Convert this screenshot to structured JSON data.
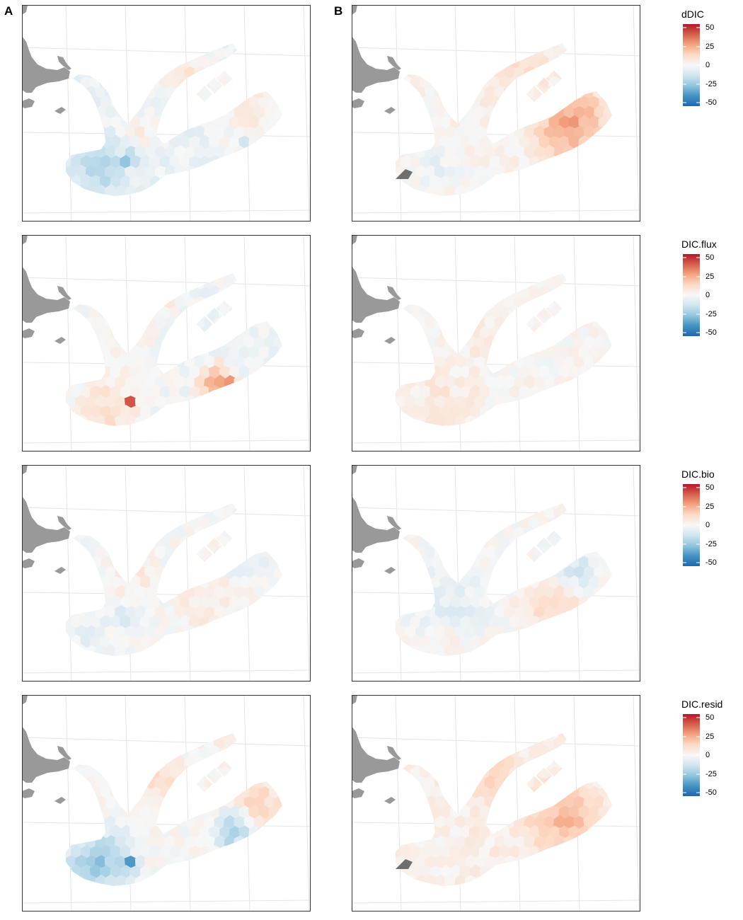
{
  "panel_labels": [
    "A",
    "B"
  ],
  "colors": {
    "land": "#999999",
    "land_dark": "#6e6e6e",
    "grid": "#e4e4e4",
    "frame": "#333333",
    "diverging_scale": [
      "#2166ac",
      "#4393c3",
      "#92c5de",
      "#d1e5f0",
      "#f7f7f7",
      "#fddbc7",
      "#f4a582",
      "#d6604d",
      "#b2182b"
    ]
  },
  "legend_ticks": [
    "50",
    "25",
    "0",
    "-25",
    "-50"
  ],
  "rows": [
    {
      "variable": "dDIC",
      "panels": [
        {
          "label": "A",
          "pattern": "dDIC_A"
        },
        {
          "label": "B",
          "pattern": "dDIC_B"
        }
      ]
    },
    {
      "variable": "DIC.flux",
      "panels": [
        {
          "label": "A",
          "pattern": "flux_A"
        },
        {
          "label": "B",
          "pattern": "flux_B"
        }
      ]
    },
    {
      "variable": "DIC.bio",
      "panels": [
        {
          "label": "A",
          "pattern": "bio_A"
        },
        {
          "label": "B",
          "pattern": "bio_B"
        }
      ]
    },
    {
      "variable": "DIC.resid",
      "panels": [
        {
          "label": "A",
          "pattern": "resid_A"
        },
        {
          "label": "B",
          "pattern": "resid_B"
        }
      ]
    }
  ]
}
